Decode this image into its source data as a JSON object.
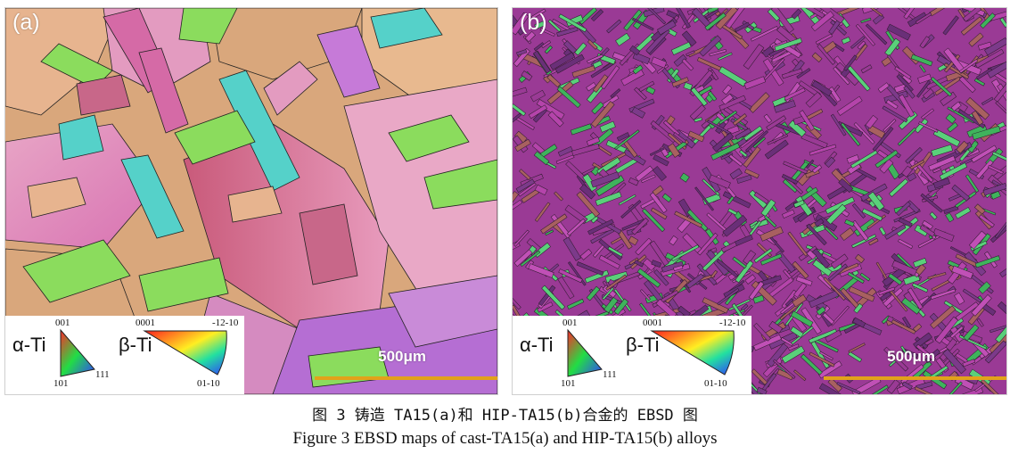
{
  "panels": [
    {
      "label": "(a)",
      "legend": {
        "alpha": "α-Ti",
        "beta": "β-Ti",
        "a001": "001",
        "a101": "101",
        "a111": "111",
        "b0001": "0001",
        "b_12_10": "-12-10",
        "b01_10": "01-10"
      },
      "scale": "500μm",
      "palette": [
        "#d9a77c",
        "#e39bc0",
        "#d56aa6",
        "#c86789",
        "#8bdc5d",
        "#55d1c9",
        "#c67ad8",
        "#e7b48f"
      ]
    },
    {
      "label": "(b)",
      "legend": {
        "alpha": "α-Ti",
        "beta": "β-Ti",
        "a001": "001",
        "a101": "101",
        "a111": "111",
        "b0001": "0001",
        "b_12_10": "-12-10",
        "b01_10": "01-10"
      },
      "scale": "500μm",
      "palette": [
        "#9a3a95",
        "#b444aa",
        "#7c3a8a",
        "#3fb35c",
        "#a86060",
        "#5ad07a",
        "#c050b6",
        "#6a2f78"
      ]
    }
  ],
  "caption": {
    "cn": "图 3 铸造 TA15(a)和 HIP-TA15(b)合金的 EBSD 图",
    "en": "Figure 3 EBSD maps of cast-TA15(a) and HIP-TA15(b) alloys"
  }
}
